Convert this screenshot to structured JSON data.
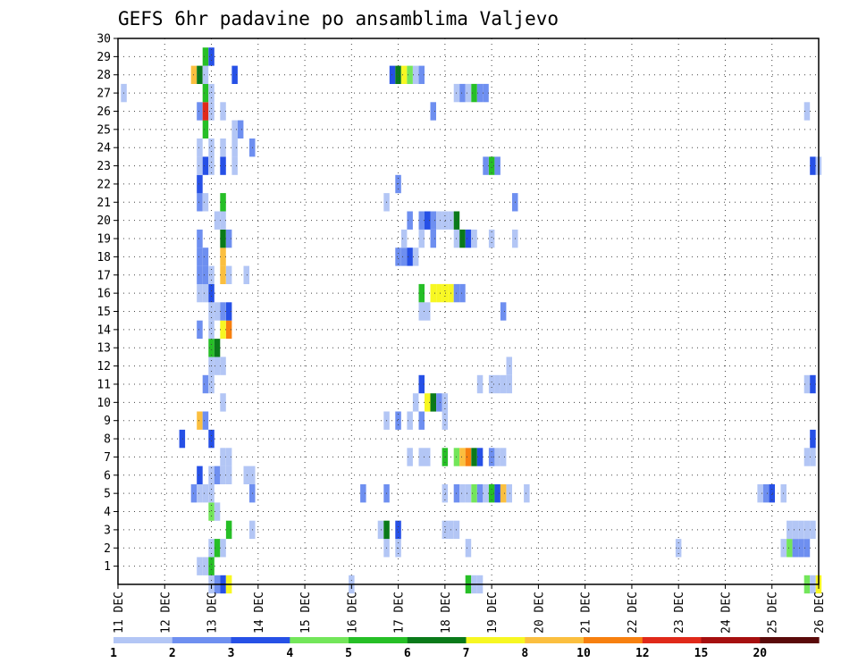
{
  "chart_data": {
    "type": "heatmap",
    "title": "GEFS 6hr padavine po ansamblima Valjevo",
    "xlabel": "",
    "ylabel": "",
    "x_ticks": [
      "11 DEC",
      "12 DEC",
      "13 DEC",
      "14 DEC",
      "15 DEC",
      "16 DEC",
      "17 DEC",
      "18 DEC",
      "19 DEC",
      "20 DEC",
      "21 DEC",
      "22 DEC",
      "23 DEC",
      "24 DEC",
      "25 DEC",
      "26 DEC"
    ],
    "xlim": [
      0,
      60
    ],
    "y_ticks": [
      1,
      2,
      3,
      4,
      5,
      6,
      7,
      8,
      9,
      10,
      11,
      12,
      13,
      14,
      15,
      16,
      17,
      18,
      19,
      20,
      21,
      22,
      23,
      24,
      25,
      26,
      27,
      28,
      29,
      30
    ],
    "ylim": [
      0,
      30
    ],
    "grid": true,
    "colorbar": {
      "colors": [
        "#b3c6f5",
        "#6e8ff0",
        "#2650e6",
        "#73e65a",
        "#26bf26",
        "#0a7a1a",
        "#f7f722",
        "#fbbf3f",
        "#f7800f",
        "#e0291a",
        "#a60f0f",
        "#5a0a0a"
      ],
      "labels": [
        "1",
        "2",
        "3",
        "4",
        "5",
        "6",
        "7",
        "8",
        "10",
        "12",
        "15",
        "20"
      ]
    },
    "cells": [
      [
        8,
        0,
        0
      ],
      [
        8.5,
        0,
        1
      ],
      [
        9,
        0,
        2
      ],
      [
        9.5,
        0,
        6
      ],
      [
        20,
        0,
        0
      ],
      [
        30,
        0,
        4
      ],
      [
        30.5,
        0,
        0
      ],
      [
        31,
        0,
        0
      ],
      [
        59,
        0,
        3
      ],
      [
        59.5,
        0,
        0
      ],
      [
        60,
        0,
        6
      ],
      [
        7.5,
        1,
        0
      ],
      [
        8,
        1,
        4
      ],
      [
        7,
        1,
        0
      ],
      [
        8,
        2,
        0
      ],
      [
        8.5,
        2,
        4
      ],
      [
        9,
        2,
        0
      ],
      [
        24,
        2,
        0
      ],
      [
        23,
        2,
        0
      ],
      [
        30,
        2,
        0
      ],
      [
        48,
        2,
        0
      ],
      [
        57,
        2,
        0
      ],
      [
        57.5,
        2,
        3
      ],
      [
        58,
        2,
        1
      ],
      [
        58.5,
        2,
        1
      ],
      [
        59,
        2,
        1
      ],
      [
        9.5,
        3,
        4
      ],
      [
        11.5,
        3,
        0
      ],
      [
        22.5,
        3,
        0
      ],
      [
        23,
        3,
        5
      ],
      [
        24,
        3,
        2
      ],
      [
        28,
        3,
        0
      ],
      [
        28.5,
        3,
        0
      ],
      [
        29,
        3,
        0
      ],
      [
        57.5,
        3,
        0
      ],
      [
        58,
        3,
        0
      ],
      [
        58.5,
        3,
        0
      ],
      [
        59,
        3,
        0
      ],
      [
        59.5,
        3,
        0
      ],
      [
        8,
        4,
        3
      ],
      [
        8.5,
        4,
        0
      ],
      [
        6.5,
        5,
        1
      ],
      [
        7,
        5,
        0
      ],
      [
        7.5,
        5,
        0
      ],
      [
        8,
        5,
        0
      ],
      [
        11.5,
        5,
        1
      ],
      [
        21,
        5,
        1
      ],
      [
        23,
        5,
        1
      ],
      [
        28,
        5,
        0
      ],
      [
        29,
        5,
        1
      ],
      [
        29.5,
        5,
        0
      ],
      [
        30,
        5,
        0
      ],
      [
        30.5,
        5,
        3
      ],
      [
        31,
        5,
        1
      ],
      [
        31.5,
        5,
        0
      ],
      [
        32,
        5,
        4
      ],
      [
        32.5,
        5,
        2
      ],
      [
        33,
        5,
        7
      ],
      [
        33.5,
        5,
        0
      ],
      [
        35,
        5,
        0
      ],
      [
        55,
        5,
        0
      ],
      [
        55.5,
        5,
        1
      ],
      [
        56,
        5,
        2
      ],
      [
        57,
        5,
        0
      ],
      [
        7,
        6,
        2
      ],
      [
        8,
        6,
        0
      ],
      [
        8.5,
        6,
        1
      ],
      [
        9,
        6,
        0
      ],
      [
        9.5,
        6,
        0
      ],
      [
        11,
        6,
        0
      ],
      [
        11.5,
        6,
        0
      ],
      [
        9,
        7,
        0
      ],
      [
        9.5,
        7,
        0
      ],
      [
        25,
        7,
        0
      ],
      [
        26,
        7,
        0
      ],
      [
        26.5,
        7,
        0
      ],
      [
        28,
        7,
        4
      ],
      [
        29,
        7,
        3
      ],
      [
        29.5,
        7,
        7
      ],
      [
        30,
        7,
        8
      ],
      [
        30.5,
        7,
        5
      ],
      [
        31,
        7,
        2
      ],
      [
        32,
        7,
        1
      ],
      [
        32.5,
        7,
        0
      ],
      [
        33,
        7,
        0
      ],
      [
        59,
        7,
        0
      ],
      [
        59.5,
        7,
        0
      ],
      [
        5.5,
        8,
        2
      ],
      [
        8,
        8,
        2
      ],
      [
        59.5,
        8,
        2
      ],
      [
        7,
        9,
        7
      ],
      [
        7.5,
        9,
        1
      ],
      [
        23,
        9,
        0
      ],
      [
        24,
        9,
        1
      ],
      [
        25,
        9,
        0
      ],
      [
        26,
        9,
        1
      ],
      [
        28,
        9,
        0
      ],
      [
        9,
        10,
        0
      ],
      [
        25.5,
        10,
        0
      ],
      [
        26.5,
        10,
        6
      ],
      [
        27,
        10,
        5
      ],
      [
        27.5,
        10,
        1
      ],
      [
        28,
        10,
        0
      ],
      [
        7.5,
        11,
        1
      ],
      [
        8,
        11,
        0
      ],
      [
        26,
        11,
        2
      ],
      [
        31,
        11,
        0
      ],
      [
        32,
        11,
        0
      ],
      [
        32.5,
        11,
        0
      ],
      [
        33,
        11,
        0
      ],
      [
        33.5,
        11,
        0
      ],
      [
        59,
        11,
        0
      ],
      [
        59.5,
        11,
        2
      ],
      [
        8,
        12,
        0
      ],
      [
        8.5,
        12,
        0
      ],
      [
        9,
        12,
        0
      ],
      [
        33.5,
        12,
        0
      ],
      [
        8,
        13,
        4
      ],
      [
        8.5,
        13,
        5
      ],
      [
        7,
        14,
        1
      ],
      [
        8,
        14,
        0
      ],
      [
        9,
        14,
        6
      ],
      [
        9.5,
        14,
        8
      ],
      [
        8,
        15,
        0
      ],
      [
        8.5,
        15,
        0
      ],
      [
        9,
        15,
        1
      ],
      [
        9.5,
        15,
        2
      ],
      [
        26,
        15,
        0
      ],
      [
        26.5,
        15,
        0
      ],
      [
        33,
        15,
        1
      ],
      [
        7,
        16,
        0
      ],
      [
        7.5,
        16,
        0
      ],
      [
        8,
        16,
        2
      ],
      [
        26,
        16,
        4
      ],
      [
        27,
        16,
        6
      ],
      [
        27.5,
        16,
        6
      ],
      [
        28,
        16,
        6
      ],
      [
        28.5,
        16,
        6
      ],
      [
        29,
        16,
        1
      ],
      [
        29.5,
        16,
        1
      ],
      [
        7,
        17,
        1
      ],
      [
        7.5,
        17,
        1
      ],
      [
        8,
        17,
        0
      ],
      [
        9,
        17,
        7
      ],
      [
        9.5,
        17,
        0
      ],
      [
        11,
        17,
        0
      ],
      [
        7,
        18,
        1
      ],
      [
        7.5,
        18,
        1
      ],
      [
        9,
        18,
        7
      ],
      [
        24,
        18,
        1
      ],
      [
        24.5,
        18,
        1
      ],
      [
        25,
        18,
        2
      ],
      [
        25.5,
        18,
        0
      ],
      [
        7,
        19,
        1
      ],
      [
        9,
        19,
        5
      ],
      [
        9.5,
        19,
        1
      ],
      [
        24.5,
        19,
        0
      ],
      [
        26,
        19,
        0
      ],
      [
        27,
        19,
        1
      ],
      [
        29,
        19,
        0
      ],
      [
        29.5,
        19,
        5
      ],
      [
        30,
        19,
        2
      ],
      [
        30.5,
        19,
        0
      ],
      [
        32,
        19,
        0
      ],
      [
        34,
        19,
        0
      ],
      [
        8.5,
        20,
        0
      ],
      [
        9,
        20,
        0
      ],
      [
        25,
        20,
        1
      ],
      [
        26,
        20,
        1
      ],
      [
        26.5,
        20,
        2
      ],
      [
        27,
        20,
        1
      ],
      [
        27.5,
        20,
        0
      ],
      [
        28,
        20,
        0
      ],
      [
        28.5,
        20,
        0
      ],
      [
        29,
        20,
        5
      ],
      [
        7,
        21,
        1
      ],
      [
        7.5,
        21,
        0
      ],
      [
        9,
        21,
        4
      ],
      [
        23,
        21,
        0
      ],
      [
        34,
        21,
        1
      ],
      [
        7,
        22,
        2
      ],
      [
        24,
        22,
        1
      ],
      [
        7,
        23,
        0
      ],
      [
        7.5,
        23,
        2
      ],
      [
        8,
        23,
        0
      ],
      [
        9,
        23,
        2
      ],
      [
        10,
        23,
        0
      ],
      [
        31.5,
        23,
        1
      ],
      [
        32,
        23,
        4
      ],
      [
        32.5,
        23,
        1
      ],
      [
        59.5,
        23,
        2
      ],
      [
        60,
        23,
        0
      ],
      [
        7,
        24,
        0
      ],
      [
        8,
        24,
        0
      ],
      [
        9,
        24,
        0
      ],
      [
        10,
        24,
        0
      ],
      [
        11.5,
        24,
        1
      ],
      [
        7.5,
        25,
        4
      ],
      [
        10,
        25,
        0
      ],
      [
        10.5,
        25,
        1
      ],
      [
        7,
        26,
        1
      ],
      [
        7.5,
        26,
        9
      ],
      [
        8,
        26,
        0
      ],
      [
        9,
        26,
        0
      ],
      [
        27,
        26,
        1
      ],
      [
        59,
        26,
        0
      ],
      [
        7.5,
        27,
        4
      ],
      [
        8,
        27,
        0
      ],
      [
        0.5,
        27,
        0
      ],
      [
        29,
        27,
        0
      ],
      [
        29.5,
        27,
        1
      ],
      [
        30,
        27,
        0
      ],
      [
        30.5,
        27,
        4
      ],
      [
        31,
        27,
        1
      ],
      [
        31.5,
        27,
        1
      ],
      [
        6.5,
        28,
        7
      ],
      [
        7,
        28,
        5
      ],
      [
        7.5,
        28,
        0
      ],
      [
        10,
        28,
        2
      ],
      [
        23.5,
        28,
        2
      ],
      [
        24,
        28,
        5
      ],
      [
        24.5,
        28,
        6
      ],
      [
        25,
        28,
        3
      ],
      [
        25.5,
        28,
        0
      ],
      [
        26,
        28,
        1
      ],
      [
        7.5,
        29,
        4
      ],
      [
        8,
        29,
        2
      ]
    ]
  }
}
